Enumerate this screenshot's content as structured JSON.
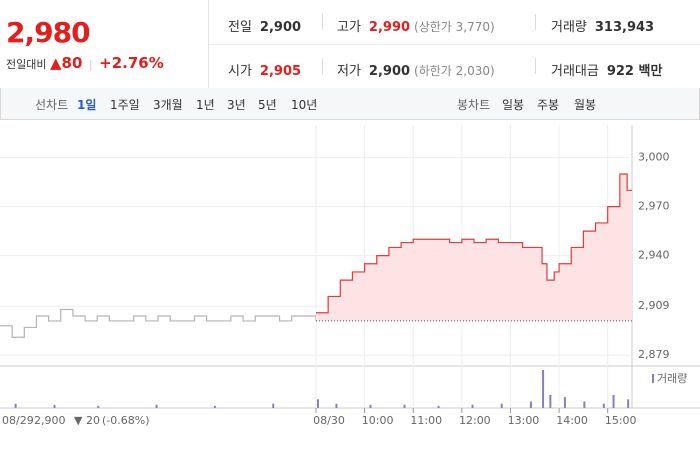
{
  "quote": {
    "price": "2,980",
    "change_label": "전일대비",
    "change": "80",
    "change_pct": "+2.76%"
  },
  "stats": [
    [
      {
        "label": "전일",
        "value": "2,900"
      },
      {
        "label": "고가",
        "value": "2,990",
        "note": "(상한가 3,770)"
      },
      {
        "label": "거래량",
        "value": "313,943"
      }
    ],
    [
      {
        "label": "시가",
        "value": "2,905"
      },
      {
        "label": "저가",
        "value": "2,900",
        "note": "(하한가 2,030)"
      },
      {
        "label": "거래대금",
        "value": "922 백만"
      }
    ]
  ],
  "tabs": {
    "line_label": "선차트",
    "line": [
      "1일",
      "1주일",
      "3개월",
      "1년",
      "3년",
      "5년",
      "10년"
    ],
    "candle_label": "봉차트",
    "candle": [
      "일봉",
      "주봉",
      "월봉"
    ]
  },
  "footer": {
    "date": "08/29",
    "close": "2,900",
    "change": "20",
    "change_pct": "(-0.68%)"
  },
  "chart_data": {
    "type": "line",
    "xlim": [
      0,
      13
    ],
    "xticks": [
      {
        "value": 6.5,
        "label": "08/30"
      },
      {
        "value": 7.5,
        "label": "10:00"
      },
      {
        "value": 8.5,
        "label": "11:00"
      },
      {
        "value": 9.5,
        "label": "12:00"
      },
      {
        "value": 10.5,
        "label": "13:00"
      },
      {
        "value": 11.5,
        "label": "14:00"
      },
      {
        "value": 12.5,
        "label": "15:00"
      }
    ],
    "ylim": [
      2873,
      3020
    ],
    "yticks": [
      {
        "value": 3000,
        "label": "3,000"
      },
      {
        "value": 2970,
        "label": "2,970"
      },
      {
        "value": 2940,
        "label": "2,940"
      },
      {
        "value": 2909,
        "label": "2,909"
      },
      {
        "value": 2879,
        "label": "2,879"
      }
    ],
    "baseline": 2900,
    "grid": true,
    "series": [
      {
        "color": "#b4b4b4",
        "x": [
          0,
          0.25,
          0.5,
          0.75,
          1,
          1.25,
          1.5,
          1.75,
          2,
          2.25,
          2.5,
          2.75,
          3,
          3.25,
          3.5,
          3.75,
          4,
          4.25,
          4.5,
          4.75,
          5,
          5.25,
          5.5,
          5.75,
          6,
          6.25,
          6.5
        ],
        "values": [
          2897,
          2890,
          2896,
          2903,
          2900,
          2907,
          2903,
          2900,
          2903,
          2900,
          2900,
          2903,
          2900,
          2903,
          2900,
          2900,
          2903,
          2900,
          2900,
          2903,
          2900,
          2903,
          2903,
          2900,
          2903,
          2903,
          2900
        ]
      },
      {
        "color": "#e8393b",
        "fill": "#fde3e3",
        "x": [
          6.5,
          6.75,
          7,
          7.25,
          7.5,
          7.75,
          8,
          8.25,
          8.5,
          8.75,
          9,
          9.25,
          9.5,
          9.75,
          10,
          10.25,
          10.5,
          10.75,
          11,
          11.15,
          11.25,
          11.4,
          11.5,
          11.75,
          12,
          12.25,
          12.5,
          12.75,
          12.9,
          13
        ],
        "values": [
          2905,
          2915,
          2925,
          2930,
          2935,
          2940,
          2945,
          2948,
          2950,
          2950,
          2950,
          2948,
          2950,
          2948,
          2950,
          2948,
          2948,
          2945,
          2945,
          2935,
          2925,
          2930,
          2935,
          2945,
          2955,
          2960,
          2970,
          2990,
          2980,
          2980
        ]
      }
    ],
    "volume": {
      "name": "거래량",
      "color": "#8e7cc3",
      "x": [
        0.3,
        1.1,
        2.0,
        3.2,
        4.4,
        5.6,
        6.52,
        6.9,
        7.6,
        8.3,
        9.0,
        9.7,
        10.3,
        10.9,
        11.15,
        11.3,
        11.6,
        12.0,
        12.4,
        12.6,
        12.9
      ],
      "values": [
        4,
        3,
        2,
        3,
        2,
        4,
        8,
        4,
        3,
        3,
        2,
        3,
        4,
        6,
        35,
        12,
        10,
        6,
        4,
        12,
        8
      ]
    }
  }
}
